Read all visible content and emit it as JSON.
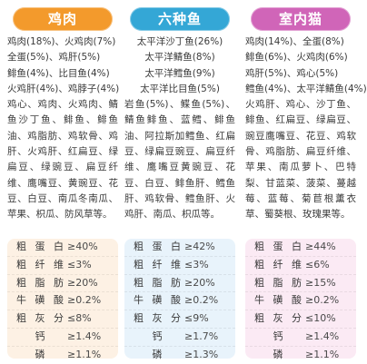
{
  "colors": {
    "chicken_header": "#f39a2c",
    "fish_header": "#34a7d6",
    "cat_header": "#d065b8",
    "chicken_panel": "#fdf1e4",
    "fish_panel": "#e8f3fb",
    "cat_panel": "#fbeaf4"
  },
  "columns": [
    {
      "title": "鸡肉",
      "ingredients_lines": [
        "鸡肉(18%)、火鸡肉(7%)",
        "全蛋(5%)、鸡肝(5%)",
        "鲱鱼(4%)、比目鱼(4%)",
        "火鸡肝(4%)、鸡脖子(4%)"
      ],
      "ingredients_rest": "鸡心、鸡肉、火鸡肉、鲭鱼沙丁鱼、鲱鱼、鲱鱼油、鸡脂肪、鸡软骨、鸡肝、火鸡肝、红扁豆、绿扁豆、绿豌豆、扁豆纤维、鹰嘴豆、黄豌豆、花豆、白豆、南瓜冬南瓜、苹果、枳瓜、防风草等。",
      "nutrition": [
        {
          "label": "粗蛋白",
          "value": "≥40%"
        },
        {
          "label": "粗纤维",
          "value": "≤3%"
        },
        {
          "label": "粗脂肪",
          "value": "≥20%"
        },
        {
          "label": "牛磺酸",
          "value": "≥0.2%"
        },
        {
          "label": "粗灰分",
          "value": "≤8%"
        },
        {
          "label": "钙",
          "value": "≥1.4%"
        },
        {
          "label": "磷",
          "value": "≥1.1%"
        }
      ]
    },
    {
      "title": "六种鱼",
      "ingredients_lines": [
        "太平洋沙丁鱼(26%)",
        "太平洋鲭鱼(8%)",
        "太平洋鳕鱼(9%)",
        "太平洋比目鱼(5%)"
      ],
      "ingredients_rest": "岩鱼(5%)、鲽鱼(5%)、鲭鱼鲱鱼、蓝鳕、鲱鱼油、阿拉斯加鳕鱼、红扁豆、绿扁豆豌豆、扁豆纤维、鹰嘴豆黄豌豆、花豆、白豆、鲱鱼肝、鳕鱼肝、鸡软骨、鳕鱼肝、火鸡肝、南瓜、枳瓜等。",
      "nutrition": [
        {
          "label": "粗蛋白",
          "value": "≥42%"
        },
        {
          "label": "粗纤维",
          "value": "≤3%"
        },
        {
          "label": "粗脂肪",
          "value": "≥20%"
        },
        {
          "label": "牛磺酸",
          "value": "≥0.2%"
        },
        {
          "label": "粗灰分",
          "value": "≤9%"
        },
        {
          "label": "钙",
          "value": "≥1.7%"
        },
        {
          "label": "磷",
          "value": "≥1.3%"
        }
      ]
    },
    {
      "title": "室内猫",
      "ingredients_lines": [
        "鸡肉(14%)、全蛋(8%)",
        "鲱鱼(6%)、火鸡肉(6%)",
        "鸡肝(5%)、鸡心(5%)",
        "鳕鱼(4%)、太平洋鲭鱼(4%)"
      ],
      "ingredients_rest": "火鸡肝、鸡心、沙丁鱼、鲱鱼、红扁豆、绿扁豆、豌豆鹰嘴豆、花豆、鸡软骨、鸡脂肪、扁豆纤维、苹果、南瓜萝卜、巴特梨、甘蓝菜、菠菜、蔓越莓、蓝莓、菊苣根薰衣草、蜀葵根、玫瑰果等。",
      "nutrition": [
        {
          "label": "粗蛋白",
          "value": "≥44%"
        },
        {
          "label": "粗纤维",
          "value": "≤6%"
        },
        {
          "label": "粗脂肪",
          "value": "≥15%"
        },
        {
          "label": "牛磺酸",
          "value": "≥0.2%"
        },
        {
          "label": "粗灰分",
          "value": "≤10%"
        },
        {
          "label": "钙",
          "value": "≥1.4%"
        },
        {
          "label": "磷",
          "value": "≥1.1%"
        }
      ]
    }
  ]
}
